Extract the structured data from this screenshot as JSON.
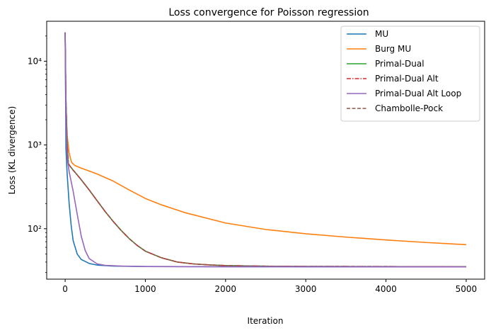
{
  "chart_data": {
    "type": "line",
    "title": "Loss convergence for Poisson regression",
    "xlabel": "Iteration",
    "ylabel": "Loss (KL divergence)",
    "xlim": [
      -230,
      5230
    ],
    "ylim": [
      25,
      30000
    ],
    "yscale": "log",
    "xticks": [
      0,
      1000,
      2000,
      3000,
      4000,
      5000
    ],
    "xtick_labels": [
      "0",
      "1000",
      "2000",
      "3000",
      "4000",
      "5000"
    ],
    "yticks": [
      100,
      1000,
      10000
    ],
    "ytick_labels": [
      "10²",
      "10³",
      "10⁴"
    ],
    "legend_position": "top-right",
    "grid": false,
    "series": [
      {
        "name": "MU",
        "color": "#1f77b4",
        "dash": "solid",
        "points": [
          [
            0,
            22000
          ],
          [
            10,
            900
          ],
          [
            25,
            450
          ],
          [
            50,
            200
          ],
          [
            75,
            110
          ],
          [
            100,
            72
          ],
          [
            150,
            50
          ],
          [
            200,
            43
          ],
          [
            300,
            38.5
          ],
          [
            400,
            36.8
          ],
          [
            600,
            35.8
          ],
          [
            1000,
            35.4
          ],
          [
            2000,
            35.2
          ],
          [
            3000,
            35.1
          ],
          [
            5000,
            35.0
          ]
        ]
      },
      {
        "name": "Burg MU",
        "color": "#ff7f0e",
        "dash": "solid",
        "points": [
          [
            0,
            22000
          ],
          [
            10,
            3000
          ],
          [
            25,
            1300
          ],
          [
            50,
            800
          ],
          [
            80,
            620
          ],
          [
            120,
            570
          ],
          [
            200,
            530
          ],
          [
            400,
            450
          ],
          [
            600,
            370
          ],
          [
            800,
            290
          ],
          [
            1000,
            230
          ],
          [
            1200,
            193
          ],
          [
            1500,
            155
          ],
          [
            2000,
            117
          ],
          [
            2500,
            98
          ],
          [
            3000,
            87
          ],
          [
            3500,
            79.5
          ],
          [
            4000,
            73.5
          ],
          [
            4500,
            68.5
          ],
          [
            5000,
            64.5
          ]
        ]
      },
      {
        "name": "Primal-Dual",
        "color": "#2ca02c",
        "dash": "solid",
        "points": [
          [
            0,
            22000
          ],
          [
            10,
            3500
          ],
          [
            25,
            1000
          ],
          [
            40,
            600
          ],
          [
            60,
            560
          ],
          [
            100,
            500
          ],
          [
            150,
            440
          ],
          [
            200,
            385
          ],
          [
            300,
            290
          ],
          [
            400,
            215
          ],
          [
            500,
            160
          ],
          [
            600,
            122
          ],
          [
            700,
            95
          ],
          [
            800,
            76
          ],
          [
            900,
            63
          ],
          [
            1000,
            54
          ],
          [
            1200,
            45
          ],
          [
            1400,
            40
          ],
          [
            1600,
            38
          ],
          [
            1800,
            37
          ],
          [
            2000,
            36.3
          ],
          [
            2500,
            35.7
          ],
          [
            3000,
            35.5
          ],
          [
            5000,
            35.2
          ]
        ]
      },
      {
        "name": "Primal-Dual Alt",
        "color": "#d62728",
        "dash": "6,2,1.5,2",
        "points": [
          [
            0,
            22000
          ],
          [
            10,
            3500
          ],
          [
            25,
            1000
          ],
          [
            40,
            600
          ],
          [
            60,
            560
          ],
          [
            100,
            500
          ],
          [
            150,
            440
          ],
          [
            200,
            385
          ],
          [
            300,
            290
          ],
          [
            400,
            215
          ],
          [
            500,
            160
          ],
          [
            600,
            122
          ],
          [
            700,
            95
          ],
          [
            800,
            76
          ],
          [
            900,
            63
          ],
          [
            1000,
            54
          ],
          [
            1200,
            45
          ],
          [
            1400,
            40
          ],
          [
            1600,
            38
          ],
          [
            1800,
            37
          ],
          [
            2000,
            36.3
          ],
          [
            2500,
            35.7
          ],
          [
            3000,
            35.5
          ],
          [
            5000,
            35.2
          ]
        ]
      },
      {
        "name": "Primal-Dual Alt Loop",
        "color": "#9467bd",
        "dash": "solid",
        "points": [
          [
            0,
            22000
          ],
          [
            10,
            2000
          ],
          [
            25,
            700
          ],
          [
            50,
            480
          ],
          [
            100,
            280
          ],
          [
            150,
            150
          ],
          [
            200,
            82
          ],
          [
            250,
            55
          ],
          [
            300,
            44
          ],
          [
            400,
            38
          ],
          [
            500,
            36.5
          ],
          [
            700,
            35.8
          ],
          [
            1000,
            35.4
          ],
          [
            2000,
            35.2
          ],
          [
            5000,
            35.0
          ]
        ]
      },
      {
        "name": "Chambolle-Pock",
        "color": "#8c564b",
        "dash": "5,2.5",
        "points": [
          [
            0,
            22000
          ],
          [
            10,
            3500
          ],
          [
            25,
            1000
          ],
          [
            40,
            600
          ],
          [
            60,
            560
          ],
          [
            100,
            500
          ],
          [
            150,
            440
          ],
          [
            200,
            385
          ],
          [
            300,
            290
          ],
          [
            400,
            215
          ],
          [
            500,
            160
          ],
          [
            600,
            122
          ],
          [
            700,
            95
          ],
          [
            800,
            76
          ],
          [
            900,
            63
          ],
          [
            1000,
            54
          ],
          [
            1200,
            45
          ],
          [
            1400,
            40
          ],
          [
            1600,
            38
          ],
          [
            1800,
            37
          ],
          [
            2000,
            36.3
          ],
          [
            2500,
            35.7
          ],
          [
            3000,
            35.5
          ],
          [
            5000,
            35.2
          ]
        ]
      }
    ]
  }
}
